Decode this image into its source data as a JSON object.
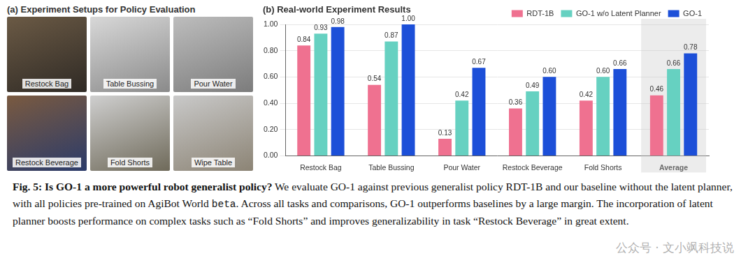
{
  "panel_a": {
    "title": "(a) Experiment Setups for Policy Evaluation",
    "photos": [
      "Restock Bag",
      "Table Bussing",
      "Pour Water",
      "Restock Beverage",
      "Fold Shorts",
      "Wipe Table"
    ]
  },
  "chart_data": {
    "type": "bar",
    "title": "(b) Real-world Experiment Results",
    "categories": [
      "Restock Bag",
      "Table Bussing",
      "Pour Water",
      "Restock Beverage",
      "Fold Shorts",
      "Average"
    ],
    "series": [
      {
        "name": "RDT-1B",
        "color": "#ef7190",
        "values": [
          0.84,
          0.54,
          0.13,
          0.36,
          0.42,
          0.46
        ],
        "value_labels": [
          "0.84",
          "0.54",
          "0.13",
          "0.36",
          "0.42",
          "0.46"
        ]
      },
      {
        "name": "GO-1 w/o Latent Planner",
        "color": "#66d1c1",
        "values": [
          0.93,
          0.87,
          0.42,
          0.49,
          0.6,
          0.66
        ],
        "value_labels": [
          "0.93",
          "0.87",
          "0.42",
          "0.49",
          "0.60",
          "0.66"
        ]
      },
      {
        "name": "GO-1",
        "color": "#1c4fd8",
        "values": [
          0.98,
          1.0,
          0.67,
          0.6,
          0.66,
          0.78
        ],
        "value_labels": [
          "0.98",
          "1.00",
          "0.67",
          "0.60",
          "0.66",
          "0.78"
        ]
      }
    ],
    "ylim": [
      0,
      1
    ],
    "yticks": [
      {
        "value": 0,
        "label": "0.00"
      },
      {
        "value": 0.2,
        "label": "0.20"
      },
      {
        "value": 0.4,
        "label": "0.40"
      },
      {
        "value": 0.6,
        "label": "0.60"
      },
      {
        "value": 0.8,
        "label": "0.80"
      },
      {
        "value": 1,
        "label": "1.00"
      }
    ],
    "grid": true,
    "legend": "top-right",
    "data_labels": true
  },
  "caption": {
    "label": "Fig. 5:",
    "heading": "Is GO-1 a more powerful robot generalist policy?",
    "text": "We evaluate GO-1 against previous generalist policy RDT-1B and our baseline without the latent planner, with all policies pre-trained on AgiBot World",
    "code": "beta",
    "text_after": ". Across all tasks and comparisons, GO-1 outperforms baselines by a large margin. The incorporation of latent planner boosts performance on complex tasks such as “Fold Shorts” and improves generalizability in task “Restock Beverage” in great extent."
  },
  "watermark": "公众号 · 文小飒科技说"
}
